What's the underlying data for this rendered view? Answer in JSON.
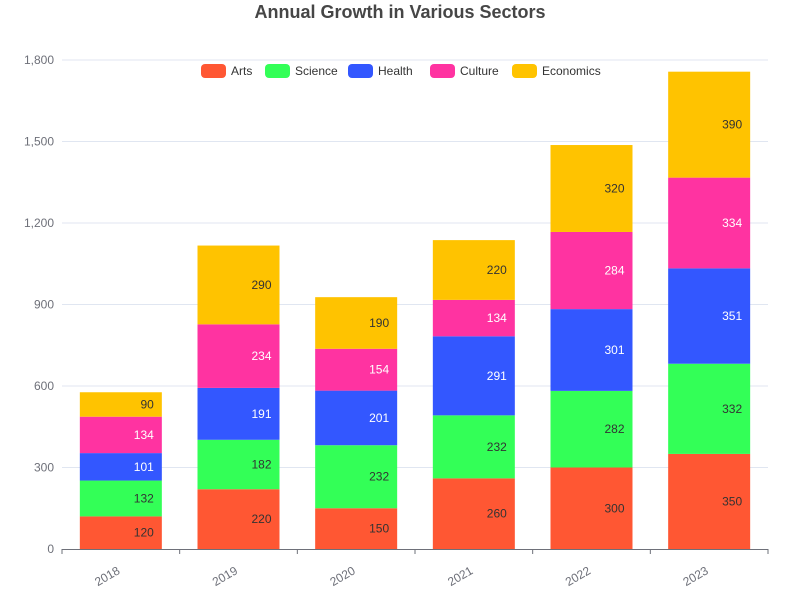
{
  "chart_data": {
    "type": "bar",
    "stacked": true,
    "title": "Annual Growth in Various Sectors",
    "categories": [
      "2018",
      "2019",
      "2020",
      "2021",
      "2022",
      "2023"
    ],
    "series": [
      {
        "name": "Arts",
        "color": "#ff5733",
        "values": [
          120,
          220,
          150,
          260,
          300,
          350
        ]
      },
      {
        "name": "Science",
        "color": "#33ff57",
        "values": [
          132,
          182,
          232,
          232,
          282,
          332
        ]
      },
      {
        "name": "Health",
        "color": "#3357ff",
        "values": [
          101,
          191,
          201,
          291,
          301,
          351
        ]
      },
      {
        "name": "Culture",
        "color": "#ff33a1",
        "values": [
          134,
          234,
          154,
          134,
          284,
          334
        ]
      },
      {
        "name": "Economics",
        "color": "#ffc300",
        "values": [
          90,
          290,
          190,
          220,
          320,
          390
        ]
      }
    ],
    "ylim": [
      0,
      1800
    ],
    "yticks": [
      0,
      300,
      600,
      900,
      1200,
      1500,
      1800
    ],
    "ytick_labels": [
      "0",
      "300",
      "600",
      "900",
      "1,200",
      "1,500",
      "1,800"
    ],
    "grid": true,
    "legend_position": "top"
  }
}
